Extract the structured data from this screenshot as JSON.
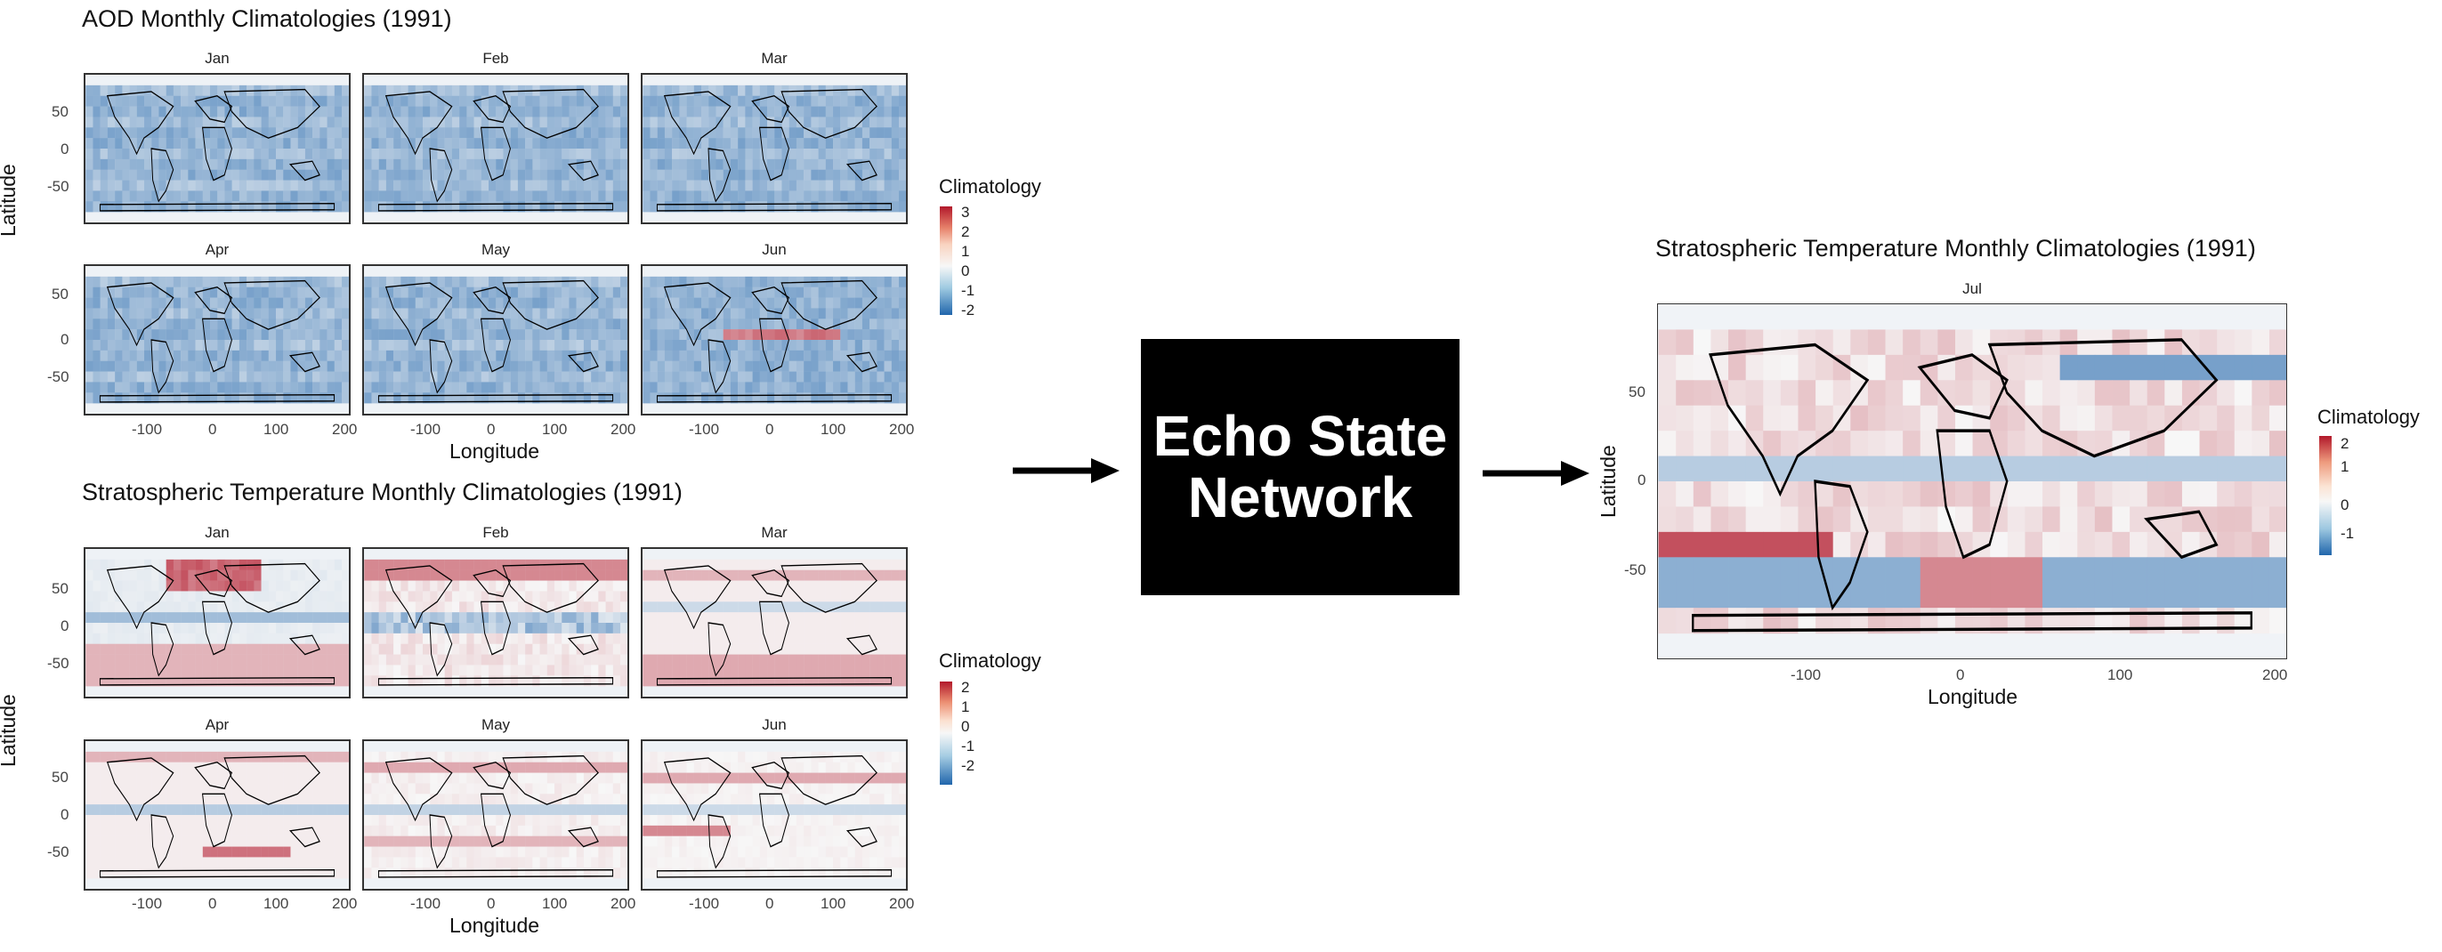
{
  "aod": {
    "title": "AOD Monthly Climatologies (1991)",
    "months": [
      "Jan",
      "Feb",
      "Mar",
      "Apr",
      "May",
      "Jun"
    ],
    "ylabel": "Latitude",
    "xlabel": "Longitude",
    "x_ticks": [
      "-100",
      "0",
      "100",
      "200"
    ],
    "y_ticks": [
      "50",
      "0",
      "-50"
    ],
    "legend": {
      "title": "Climatology",
      "labels": [
        "3",
        "2",
        "1",
        "0",
        "-1",
        "-2"
      ]
    }
  },
  "strat": {
    "title": "Stratospheric Temperature Monthly Climatologies (1991)",
    "months": [
      "Jan",
      "Feb",
      "Mar",
      "Apr",
      "May",
      "Jun"
    ],
    "ylabel": "Latitude",
    "xlabel": "Longitude",
    "x_ticks": [
      "-100",
      "0",
      "100",
      "200"
    ],
    "y_ticks": [
      "50",
      "0",
      "-50"
    ],
    "legend": {
      "title": "Climatology",
      "labels": [
        "2",
        "1",
        "0",
        "-1",
        "-2"
      ]
    }
  },
  "esn": {
    "line1": "Echo State",
    "line2": "Network"
  },
  "output": {
    "title": "Stratospheric Temperature Monthly Climatologies (1991)",
    "month": "Jul",
    "ylabel": "Latitude",
    "xlabel": "Longitude",
    "x_ticks": [
      "-100",
      "0",
      "100",
      "200"
    ],
    "y_ticks": [
      "50",
      "0",
      "-50"
    ],
    "legend": {
      "title": "Climatology",
      "labels": [
        "2",
        "1",
        "0",
        "-1"
      ]
    }
  },
  "colors": {
    "high": "#b2182b",
    "mid": "#f7f7f7",
    "low": "#2166ac",
    "arrow": "#000000",
    "box": "#000000"
  }
}
